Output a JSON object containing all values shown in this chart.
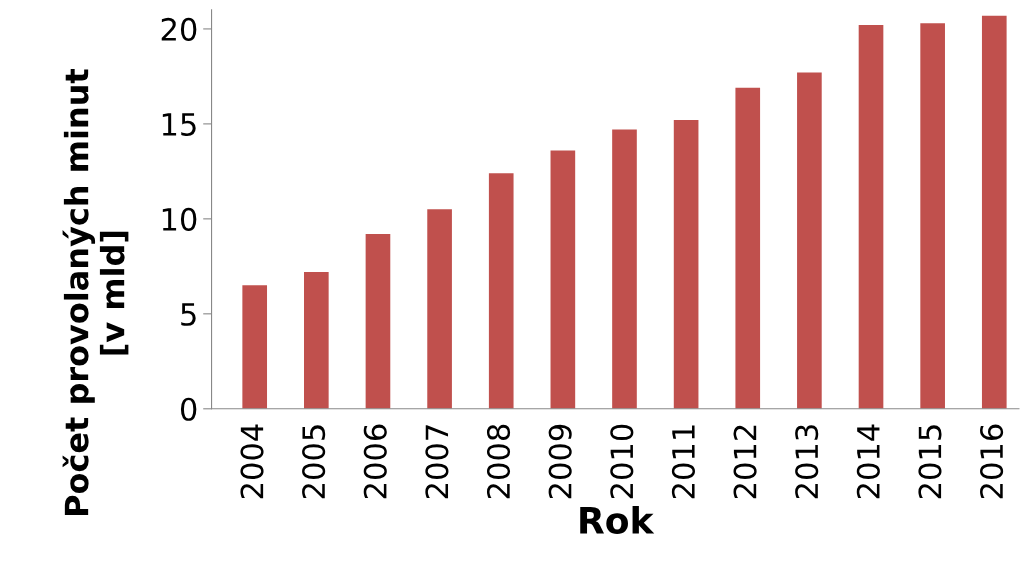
{
  "chart_data": {
    "type": "bar",
    "xlabel": "Rok",
    "ylabel": "Počet provolaných minut\n[v mld]",
    "categories": [
      "2004",
      "2005",
      "2006",
      "2007",
      "2008",
      "2009",
      "2010",
      "2011",
      "2012",
      "2013",
      "2014",
      "2015",
      "2016"
    ],
    "values": [
      6.5,
      7.2,
      9.2,
      10.5,
      12.4,
      13.6,
      14.7,
      15.2,
      16.9,
      17.7,
      20.2,
      20.3,
      20.7
    ],
    "color": "#c0504d",
    "ylim": [
      0,
      21
    ],
    "yticks": [
      0,
      5,
      10,
      15,
      20
    ],
    "grid": false
  }
}
